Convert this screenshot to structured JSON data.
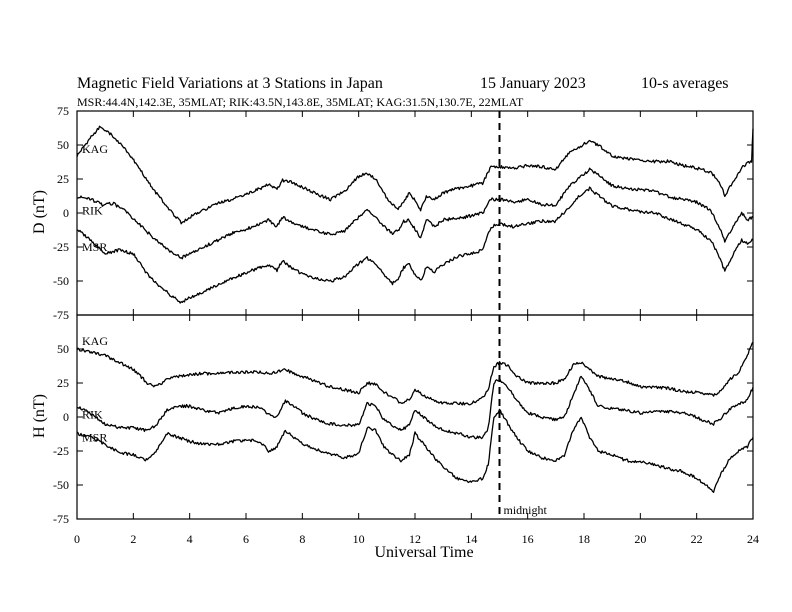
{
  "title": {
    "main": "Magnetic Field Variations at 3 Stations in Japan",
    "date": "15 January  2023",
    "averaging": "10-s averages",
    "stations_info": "MSR:44.4N,142.3E, 35MLAT;  RIK:43.5N,143.8E, 35MLAT;  KAG:31.5N,130.7E, 22MLAT"
  },
  "xaxis": {
    "label": "Universal Time",
    "range": [
      0,
      24
    ],
    "ticks": [
      "0",
      "2",
      "4",
      "6",
      "8",
      "10",
      "12",
      "14",
      "16",
      "18",
      "20",
      "22",
      "24"
    ]
  },
  "midnight": {
    "x": 15,
    "label": "midnight"
  },
  "panels": [
    {
      "id": "D",
      "ylabel": "D (nT)",
      "ylim": [
        -75,
        75
      ],
      "yticks": [
        "75",
        "50",
        "25",
        "0",
        "-25",
        "-50",
        "-75"
      ],
      "label_positions": {
        "KAG": 47,
        "RIK": 2,
        "MSR": -25
      }
    },
    {
      "id": "H",
      "ylabel": "H (nT)",
      "ylim": [
        -75,
        75
      ],
      "yticks": [
        "50",
        "25",
        "0",
        "-25",
        "-50",
        "-75"
      ],
      "label_positions": {
        "KAG": 56,
        "RIK": 2,
        "MSR": -15
      }
    }
  ],
  "chart_data": [
    {
      "type": "line",
      "panel": "D",
      "ylabel": "D (nT)",
      "xlabel": "Universal Time",
      "xlim": [
        0,
        24
      ],
      "ylim": [
        -75,
        75
      ],
      "series": [
        {
          "name": "KAG",
          "x": [
            0,
            0.5,
            0.8,
            1.2,
            1.8,
            2.3,
            2.8,
            3.3,
            3.7,
            4.0,
            4.5,
            5.0,
            5.5,
            6.0,
            6.5,
            6.8,
            7.1,
            7.3,
            7.6,
            8.0,
            8.5,
            9.0,
            9.5,
            10.0,
            10.3,
            10.6,
            10.9,
            11.2,
            11.4,
            11.6,
            11.8,
            12.0,
            12.2,
            12.4,
            12.7,
            13.0,
            13.5,
            14.0,
            14.4,
            14.7,
            15.0,
            15.5,
            16.0,
            16.5,
            17.0,
            17.5,
            17.8,
            18.2,
            18.5,
            19.0,
            19.5,
            20.0,
            20.5,
            21.0,
            21.5,
            22.0,
            22.5,
            22.8,
            23.0,
            23.3,
            23.6,
            23.8,
            23.95,
            24.0
          ],
          "values": [
            42,
            56,
            63,
            58,
            45,
            30,
            15,
            2,
            -7,
            -3,
            2,
            7,
            10,
            14,
            18,
            21,
            17,
            24,
            23,
            19,
            14,
            10,
            16,
            27,
            29,
            25,
            14,
            6,
            3,
            8,
            15,
            9,
            2,
            12,
            10,
            15,
            18,
            20,
            22,
            34,
            34,
            33,
            35,
            34,
            32,
            45,
            48,
            53,
            50,
            42,
            40,
            39,
            38,
            38,
            35,
            33,
            30,
            23,
            13,
            23,
            33,
            37,
            38,
            62
          ]
        },
        {
          "name": "RIK",
          "x": [
            0,
            0.5,
            0.9,
            1.3,
            1.8,
            2.3,
            2.8,
            3.3,
            3.7,
            4.0,
            4.5,
            5.0,
            5.5,
            6.0,
            6.5,
            6.8,
            7.1,
            7.3,
            7.6,
            8.0,
            8.5,
            9.0,
            9.5,
            10.0,
            10.3,
            10.6,
            10.9,
            11.2,
            11.4,
            11.6,
            11.8,
            12.0,
            12.2,
            12.4,
            12.7,
            13.0,
            13.5,
            14.0,
            14.4,
            14.7,
            15.0,
            15.5,
            16.0,
            16.5,
            17.0,
            17.5,
            17.8,
            18.2,
            18.5,
            19.0,
            19.5,
            20.0,
            20.5,
            21.0,
            21.5,
            22.0,
            22.5,
            22.8,
            23.0,
            23.3,
            23.6,
            23.8,
            24.0
          ],
          "values": [
            12,
            10,
            6,
            7,
            0,
            -10,
            -20,
            -28,
            -33,
            -30,
            -25,
            -20,
            -15,
            -12,
            -8,
            -5,
            -10,
            -3,
            -7,
            -10,
            -13,
            -16,
            -13,
            -3,
            2,
            -3,
            -10,
            -15,
            -13,
            -6,
            -5,
            -12,
            -18,
            -5,
            -10,
            -5,
            -4,
            -2,
            0,
            10,
            10,
            8,
            10,
            6,
            6,
            20,
            25,
            32,
            28,
            20,
            18,
            17,
            16,
            12,
            10,
            8,
            2,
            -10,
            -21,
            -10,
            0,
            -5,
            -3
          ]
        },
        {
          "name": "MSR",
          "x": [
            0,
            0.5,
            1.0,
            1.5,
            2.0,
            2.5,
            3.0,
            3.3,
            3.7,
            4.0,
            4.5,
            5.0,
            5.5,
            6.0,
            6.5,
            6.8,
            7.1,
            7.3,
            7.6,
            8.0,
            8.5,
            9.0,
            9.5,
            10.0,
            10.3,
            10.6,
            10.9,
            11.2,
            11.4,
            11.6,
            11.8,
            12.0,
            12.2,
            12.4,
            12.7,
            13.0,
            13.5,
            14.0,
            14.4,
            14.7,
            15.0,
            15.5,
            16.0,
            16.5,
            17.0,
            17.5,
            17.8,
            18.2,
            18.5,
            19.0,
            19.5,
            20.0,
            20.5,
            21.0,
            21.5,
            22.0,
            22.5,
            22.8,
            23.0,
            23.3,
            23.6,
            23.8,
            24.0
          ],
          "values": [
            -12,
            -20,
            -30,
            -27,
            -30,
            -45,
            -55,
            -60,
            -66,
            -62,
            -58,
            -53,
            -48,
            -44,
            -40,
            -38,
            -42,
            -35,
            -40,
            -45,
            -48,
            -50,
            -47,
            -37,
            -33,
            -38,
            -45,
            -52,
            -48,
            -40,
            -38,
            -45,
            -50,
            -40,
            -43,
            -38,
            -32,
            -30,
            -27,
            -10,
            -8,
            -10,
            -8,
            -6,
            -6,
            5,
            12,
            18,
            13,
            5,
            3,
            1,
            0,
            -4,
            -8,
            -12,
            -20,
            -32,
            -43,
            -30,
            -20,
            -22,
            -20
          ]
        }
      ]
    },
    {
      "type": "line",
      "panel": "H",
      "ylabel": "H (nT)",
      "xlabel": "Universal Time",
      "xlim": [
        0,
        24
      ],
      "ylim": [
        -75,
        75
      ],
      "series": [
        {
          "name": "KAG",
          "x": [
            0,
            0.5,
            1.0,
            1.5,
            2.0,
            2.5,
            2.8,
            3.2,
            3.6,
            4.0,
            4.5,
            5.0,
            5.5,
            6.0,
            6.5,
            6.8,
            7.1,
            7.4,
            7.7,
            8.0,
            8.5,
            9.0,
            9.5,
            10.0,
            10.3,
            10.6,
            10.9,
            11.2,
            11.5,
            11.8,
            12.0,
            12.3,
            12.7,
            13.0,
            13.5,
            14.0,
            14.4,
            14.6,
            14.8,
            15.0,
            15.3,
            15.6,
            16.0,
            16.5,
            17.0,
            17.3,
            17.6,
            17.9,
            18.2,
            18.5,
            19.0,
            19.5,
            20.0,
            20.5,
            21.0,
            21.5,
            22.0,
            22.3,
            22.6,
            22.9,
            23.2,
            23.5,
            23.8,
            24.0
          ],
          "values": [
            50,
            48,
            45,
            40,
            35,
            25,
            22,
            28,
            30,
            31,
            32,
            32,
            33,
            33,
            33,
            32,
            33,
            35,
            32,
            30,
            26,
            22,
            20,
            18,
            25,
            24,
            18,
            15,
            10,
            13,
            20,
            16,
            12,
            10,
            10,
            10,
            14,
            20,
            37,
            40,
            38,
            30,
            25,
            25,
            25,
            28,
            38,
            40,
            35,
            30,
            28,
            26,
            22,
            22,
            21,
            19,
            18,
            17,
            16,
            20,
            28,
            33,
            45,
            55
          ]
        },
        {
          "name": "RIK",
          "x": [
            0,
            0.5,
            1.0,
            1.5,
            2.0,
            2.5,
            2.8,
            3.2,
            3.6,
            4.0,
            4.5,
            5.0,
            5.5,
            6.0,
            6.5,
            6.8,
            7.1,
            7.4,
            7.7,
            8.0,
            8.5,
            9.0,
            9.5,
            10.0,
            10.3,
            10.6,
            10.9,
            11.2,
            11.5,
            11.8,
            12.0,
            12.3,
            12.7,
            13.0,
            13.5,
            14.0,
            14.4,
            14.6,
            14.8,
            15.0,
            15.3,
            15.6,
            16.0,
            16.5,
            17.0,
            17.3,
            17.6,
            17.9,
            18.2,
            18.5,
            19.0,
            19.5,
            20.0,
            20.5,
            21.0,
            21.5,
            22.0,
            22.3,
            22.6,
            22.9,
            23.2,
            23.5,
            23.8,
            24.0
          ],
          "values": [
            8,
            2,
            -5,
            -8,
            -8,
            -10,
            -6,
            5,
            8,
            8,
            5,
            3,
            6,
            8,
            7,
            2,
            0,
            12,
            8,
            3,
            -2,
            -5,
            -6,
            -6,
            10,
            8,
            -2,
            -6,
            -10,
            -6,
            5,
            0,
            -6,
            -10,
            -12,
            -15,
            -15,
            -8,
            25,
            28,
            22,
            12,
            3,
            0,
            -2,
            0,
            15,
            30,
            20,
            8,
            6,
            5,
            3,
            4,
            4,
            3,
            0,
            -3,
            -5,
            0,
            6,
            10,
            12,
            22
          ]
        },
        {
          "name": "MSR",
          "x": [
            0,
            0.5,
            1.0,
            1.5,
            2.0,
            2.5,
            2.8,
            3.2,
            3.6,
            4.0,
            4.5,
            5.0,
            5.5,
            6.0,
            6.5,
            6.8,
            7.1,
            7.4,
            7.7,
            8.0,
            8.5,
            9.0,
            9.5,
            10.0,
            10.3,
            10.6,
            10.9,
            11.2,
            11.5,
            11.8,
            12.0,
            12.3,
            12.7,
            13.0,
            13.5,
            14.0,
            14.4,
            14.6,
            14.8,
            15.0,
            15.3,
            15.6,
            16.0,
            16.5,
            17.0,
            17.3,
            17.6,
            17.9,
            18.2,
            18.5,
            19.0,
            19.5,
            20.0,
            20.5,
            21.0,
            21.5,
            22.0,
            22.3,
            22.6,
            22.9,
            23.2,
            23.5,
            23.8,
            24.0
          ],
          "values": [
            -12,
            -15,
            -20,
            -26,
            -28,
            -32,
            -25,
            -12,
            -15,
            -18,
            -20,
            -20,
            -18,
            -17,
            -18,
            -25,
            -22,
            -10,
            -15,
            -20,
            -24,
            -27,
            -30,
            -27,
            -8,
            -10,
            -22,
            -28,
            -32,
            -28,
            -12,
            -20,
            -30,
            -37,
            -45,
            -48,
            -45,
            -35,
            0,
            5,
            -5,
            -15,
            -25,
            -30,
            -32,
            -28,
            -10,
            0,
            -15,
            -25,
            -28,
            -32,
            -33,
            -35,
            -38,
            -40,
            -45,
            -50,
            -55,
            -40,
            -30,
            -25,
            -22,
            -15
          ]
        }
      ]
    }
  ]
}
